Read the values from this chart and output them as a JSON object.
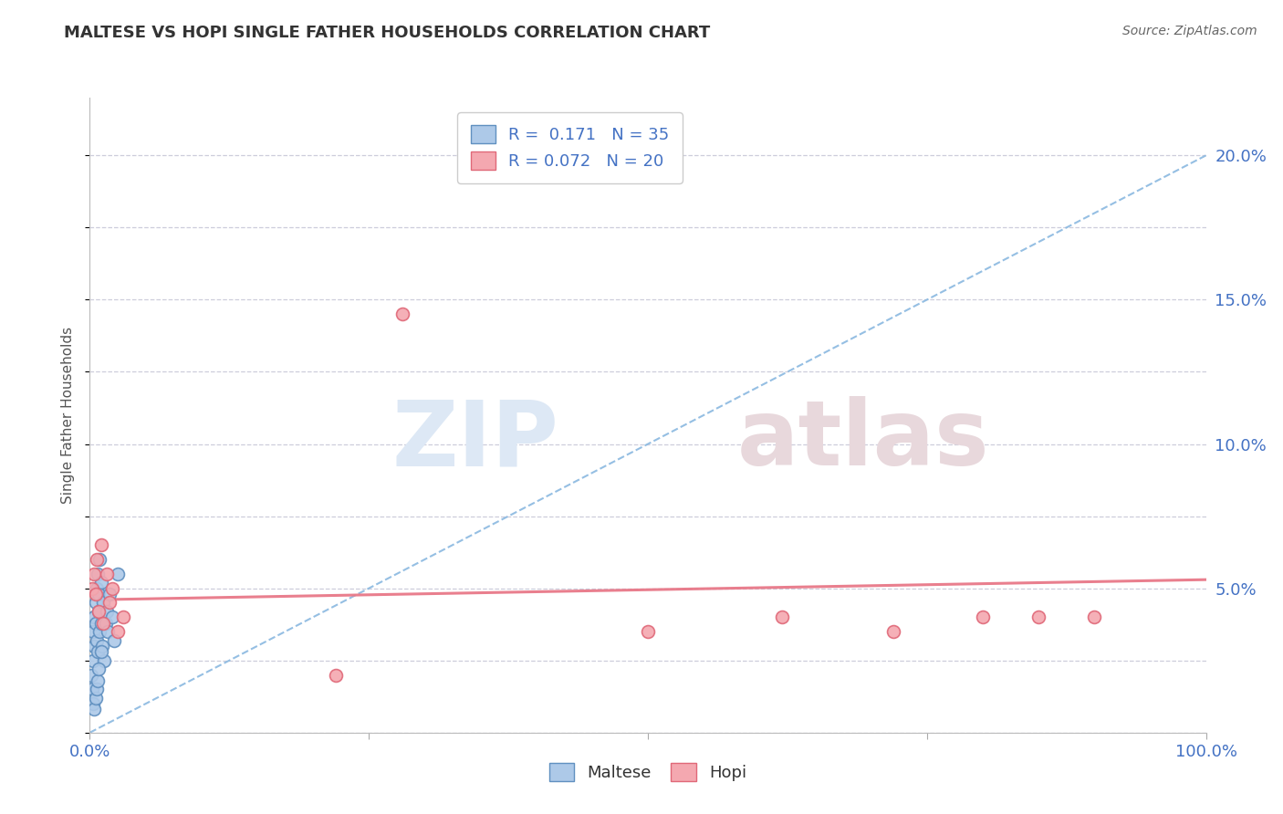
{
  "title": "MALTESE VS HOPI SINGLE FATHER HOUSEHOLDS CORRELATION CHART",
  "source": "Source: ZipAtlas.com",
  "ylabel": "Single Father Households",
  "xlim": [
    0.0,
    1.0
  ],
  "ylim": [
    0.0,
    0.22
  ],
  "yticks": [
    0.0,
    0.05,
    0.1,
    0.15,
    0.2
  ],
  "ytick_labels_right": [
    "",
    "5.0%",
    "10.0%",
    "15.0%",
    "20.0%"
  ],
  "xticks": [
    0.0,
    0.25,
    0.5,
    0.75,
    1.0
  ],
  "xtick_labels": [
    "0.0%",
    "",
    "",
    "",
    "100.0%"
  ],
  "maltese_color": "#adc9e8",
  "hopi_color": "#f4a8b0",
  "maltese_edge_color": "#6090c0",
  "hopi_edge_color": "#e06878",
  "blue_trend_color": "#8ab8e0",
  "pink_trend_color": "#e87888",
  "maltese_trend_intercept": 0.0,
  "maltese_trend_slope": 0.2,
  "hopi_trend_intercept": 0.046,
  "hopi_trend_slope": 0.007,
  "R_maltese": 0.171,
  "N_maltese": 35,
  "R_hopi": 0.072,
  "N_hopi": 20,
  "legend_maltese": "Maltese",
  "legend_hopi": "Hopi",
  "title_fontsize": 13,
  "axis_label_color": "#4472c4",
  "watermark_zip": "ZIP",
  "watermark_atlas": "atlas",
  "background_color": "#ffffff",
  "grid_color": "#c8c8d8",
  "marker_size": 100,
  "maltese_x": [
    0.001,
    0.002,
    0.003,
    0.003,
    0.004,
    0.004,
    0.005,
    0.005,
    0.006,
    0.006,
    0.007,
    0.007,
    0.008,
    0.008,
    0.009,
    0.009,
    0.01,
    0.01,
    0.011,
    0.012,
    0.013,
    0.014,
    0.015,
    0.016,
    0.018,
    0.02,
    0.022,
    0.025,
    0.003,
    0.004,
    0.005,
    0.006,
    0.007,
    0.008,
    0.01
  ],
  "maltese_y": [
    0.02,
    0.015,
    0.025,
    0.035,
    0.03,
    0.04,
    0.038,
    0.045,
    0.032,
    0.05,
    0.028,
    0.055,
    0.042,
    0.048,
    0.035,
    0.06,
    0.038,
    0.052,
    0.03,
    0.045,
    0.025,
    0.038,
    0.042,
    0.035,
    0.048,
    0.04,
    0.032,
    0.055,
    0.01,
    0.008,
    0.012,
    0.015,
    0.018,
    0.022,
    0.028
  ],
  "hopi_x": [
    0.002,
    0.004,
    0.005,
    0.006,
    0.008,
    0.01,
    0.012,
    0.015,
    0.018,
    0.02,
    0.025,
    0.03,
    0.22,
    0.5,
    0.62,
    0.72,
    0.8,
    0.85,
    0.9,
    0.28
  ],
  "hopi_y": [
    0.05,
    0.055,
    0.048,
    0.06,
    0.042,
    0.065,
    0.038,
    0.055,
    0.045,
    0.05,
    0.035,
    0.04,
    0.02,
    0.035,
    0.04,
    0.035,
    0.04,
    0.04,
    0.04,
    0.145
  ]
}
